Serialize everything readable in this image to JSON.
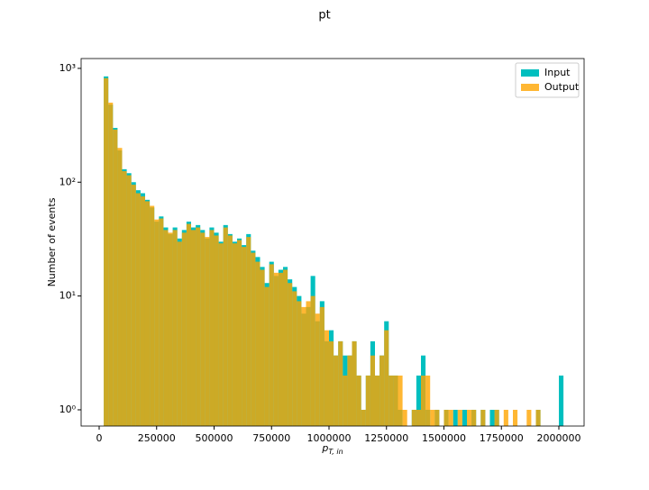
{
  "chart_data": {
    "type": "histogram",
    "title": "pt",
    "xlabel": "p",
    "xlabel_sub": "T, in",
    "ylabel": "Number of events",
    "log_y": true,
    "legend": "upper right",
    "bins": [
      20000,
      40000,
      60000,
      80000,
      100000,
      120000,
      140000,
      160000,
      180000,
      200000,
      220000,
      240000,
      260000,
      280000,
      300000,
      320000,
      340000,
      360000,
      380000,
      400000,
      420000,
      440000,
      460000,
      480000,
      500000,
      520000,
      540000,
      560000,
      580000,
      600000,
      620000,
      640000,
      660000,
      680000,
      700000,
      720000,
      740000,
      760000,
      780000,
      800000,
      820000,
      840000,
      860000,
      880000,
      900000,
      920000,
      940000,
      960000,
      980000,
      1000000,
      1020000,
      1040000,
      1060000,
      1080000,
      1100000,
      1120000,
      1140000,
      1160000,
      1180000,
      1200000,
      1220000,
      1240000,
      1260000,
      1280000,
      1300000,
      1320000,
      1340000,
      1360000,
      1380000,
      1400000,
      1420000,
      1440000,
      1460000,
      1480000,
      1500000,
      1520000,
      1540000,
      1560000,
      1580000,
      1600000,
      1620000,
      1640000,
      1660000,
      1680000,
      1700000,
      1720000,
      1740000,
      1760000,
      1780000,
      1800000,
      1820000,
      1840000,
      1860000,
      1880000,
      1900000,
      1920000,
      1940000,
      1960000,
      1980000,
      2000000,
      2020000
    ],
    "series": [
      {
        "name": "Input",
        "color": "#00bfbf",
        "opacity": 1,
        "values": [
          850,
          480,
          300,
          190,
          130,
          120,
          100,
          85,
          80,
          70,
          60,
          45,
          50,
          40,
          35,
          40,
          32,
          38,
          45,
          40,
          42,
          38,
          32,
          40,
          36,
          30,
          42,
          35,
          30,
          32,
          28,
          35,
          25,
          22,
          18,
          13,
          20,
          15,
          17,
          18,
          14,
          12,
          10,
          7,
          8,
          15,
          6,
          9,
          4,
          5,
          3,
          4,
          3,
          3,
          4,
          2,
          1,
          2,
          4,
          2,
          3,
          6,
          2,
          2,
          1,
          0,
          0,
          1,
          2,
          3,
          1,
          0,
          1,
          0,
          1,
          0,
          1,
          0,
          1,
          0,
          1,
          0,
          1,
          0,
          1,
          1,
          0,
          0,
          0,
          0,
          0,
          0,
          0,
          0,
          1,
          0,
          0,
          0,
          0,
          2
        ]
      },
      {
        "name": "Output",
        "color": "#ffa500",
        "opacity": 0.8,
        "values": [
          820,
          500,
          290,
          200,
          125,
          115,
          95,
          80,
          75,
          68,
          62,
          47,
          48,
          38,
          36,
          38,
          30,
          36,
          43,
          38,
          40,
          36,
          33,
          38,
          34,
          29,
          40,
          34,
          29,
          31,
          27,
          33,
          24,
          20,
          17,
          12,
          19,
          16,
          16,
          17,
          13,
          11,
          9,
          8,
          9,
          10,
          7,
          8,
          5,
          4,
          3,
          4,
          2,
          3,
          4,
          2,
          1,
          2,
          3,
          2,
          3,
          5,
          2,
          2,
          2,
          1,
          0,
          1,
          1,
          2,
          2,
          1,
          1,
          0,
          1,
          1,
          0,
          1,
          0,
          1,
          1,
          0,
          1,
          0,
          0,
          1,
          0,
          1,
          0,
          1,
          0,
          0,
          1,
          0,
          1,
          0,
          0,
          0,
          0,
          0
        ]
      }
    ],
    "xlim": [
      -78400,
      2109800
    ],
    "ylim": [
      0.72,
      1220
    ],
    "xticks": [
      0,
      250000,
      500000,
      750000,
      1000000,
      1250000,
      1500000,
      1750000,
      2000000
    ],
    "yticks": [
      {
        "value": 1,
        "label": "10⁰"
      },
      {
        "value": 10,
        "label": "10¹"
      },
      {
        "value": 100,
        "label": "10²"
      },
      {
        "value": 1000,
        "label": "10³"
      }
    ]
  }
}
